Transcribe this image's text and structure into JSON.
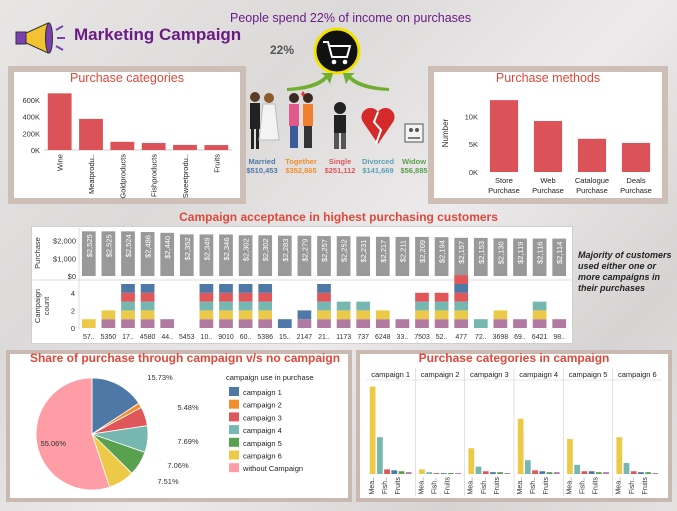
{
  "header": {
    "title": "Marketing Campaign",
    "headline": "People spend 22% of income on purchases",
    "income_share": "22%"
  },
  "colors": {
    "bar_red": "#dc5259",
    "title_purple": "#6a1b86",
    "section_red": "#e0483a",
    "grey_bar": "#999999"
  },
  "icons": {
    "logo": "megaphone-icon",
    "cart": "shopping-cart-icon"
  },
  "marital": [
    {
      "label": "Married",
      "value": "$510,453",
      "color": "#4e79a7",
      "icon": "married-couple-icon"
    },
    {
      "label": "Together",
      "value": "$352,865",
      "color": "#f28e2b",
      "icon": "together-couple-icon"
    },
    {
      "label": "Single",
      "value": "$251,112",
      "color": "#e15759",
      "icon": "single-person-icon"
    },
    {
      "label": "Divorced",
      "value": "$141,669",
      "color": "#59a1b8",
      "icon": "broken-heart-icon"
    },
    {
      "label": "Widow",
      "value": "$56,885",
      "color": "#59a14f",
      "icon": "widow-icon"
    }
  ],
  "chart_data": [
    {
      "id": "purchase_categories",
      "type": "bar",
      "title": "Purchase categories",
      "categories": [
        "Wine",
        "Meatprodu..",
        "Goldproducts",
        "Fishproducts",
        "Sweetprodu..",
        "Fruits"
      ],
      "values": [
        680000,
        373000,
        98000,
        84000,
        61000,
        59000
      ],
      "ylim": [
        0,
        720000
      ],
      "yticks": [
        0,
        200000,
        400000,
        600000
      ],
      "ytick_labels": [
        "0K",
        "200K",
        "400K",
        "600K"
      ],
      "color": "#dc5259"
    },
    {
      "id": "purchase_methods",
      "type": "bar",
      "title": "Purchase methods",
      "ylabel": "Number",
      "categories": [
        "Store Purchase",
        "Web Purchase",
        "Catalogue Purchase",
        "Deals Purchase"
      ],
      "category_lines": [
        [
          "Store",
          "Purchase"
        ],
        [
          "Web",
          "Purchase"
        ],
        [
          "Catalogue",
          "Purchase"
        ],
        [
          "Deals",
          "Purchase"
        ]
      ],
      "values": [
        12900,
        9150,
        5960,
        5210
      ],
      "ylim": [
        0,
        14000
      ],
      "yticks": [
        0,
        5000,
        10000
      ],
      "ytick_labels": [
        "0K",
        "5K",
        "10K"
      ],
      "color": "#dc5259"
    },
    {
      "id": "campaign_acceptance",
      "type": "bar",
      "title": "Campaign acceptance in highest purchasing customers",
      "note": "Majority of customers used either one or more campaigns in their purchases",
      "top_panel": {
        "ylabel": "Purchase",
        "yticks": [
          0,
          1000,
          2000
        ],
        "ytick_labels": [
          "$0",
          "$1,000",
          "$2,000"
        ],
        "ylim": [
          0,
          2600
        ],
        "values": [
          2525,
          2525,
          2524,
          2486,
          2440,
          2352,
          2349,
          2346,
          2302,
          2302,
          2283,
          2279,
          2257,
          2252,
          2231,
          2217,
          2211,
          2209,
          2194,
          2157,
          2153,
          2130,
          2119,
          2116,
          2114
        ],
        "value_labels": [
          "$2,525",
          "$2,525",
          "$2,524",
          "$2,486",
          "$2,440",
          "$2,352",
          "$2,349",
          "$2,346",
          "$2,302",
          "$2,302",
          "$2,283",
          "$2,279",
          "$2,257",
          "$2,252",
          "$2,231",
          "$2,217",
          "$2,211",
          "$2,209",
          "$2,194",
          "$2,157",
          "$2,153",
          "$2,130",
          "$2,119",
          "$2,116",
          "$2,114"
        ],
        "color": "#999999"
      },
      "bottom_panel": {
        "ylabel": "Campaign count",
        "yticks": [
          0,
          2,
          4
        ],
        "ylim": [
          0,
          5
        ],
        "stack_colors": [
          "#b07aa1",
          "#edc948",
          "#76b7b2",
          "#e15759",
          "#4e79a7"
        ],
        "stacks": [
          [
            0,
            1,
            0,
            0,
            0
          ],
          [
            1,
            1,
            0,
            0,
            0
          ],
          [
            1,
            1,
            1,
            1,
            1
          ],
          [
            1,
            1,
            1,
            1,
            1
          ],
          [
            1,
            0,
            0,
            0,
            0
          ],
          [
            0,
            0,
            0,
            0,
            0
          ],
          [
            1,
            1,
            1,
            1,
            1
          ],
          [
            1,
            1,
            1,
            1,
            1
          ],
          [
            1,
            1,
            1,
            1,
            1
          ],
          [
            1,
            1,
            1,
            1,
            1
          ],
          [
            0,
            0,
            0,
            0,
            1
          ],
          [
            1,
            0,
            0,
            0,
            1
          ],
          [
            1,
            1,
            1,
            1,
            1
          ],
          [
            1,
            1,
            1,
            0,
            0
          ],
          [
            1,
            1,
            1,
            0,
            0
          ],
          [
            1,
            1,
            0,
            0,
            0
          ],
          [
            1,
            0,
            0,
            0,
            0
          ],
          [
            1,
            1,
            1,
            1,
            0
          ],
          [
            1,
            1,
            1,
            1,
            0
          ],
          [
            1,
            1,
            1,
            1,
            1
          ],
          [
            0,
            0,
            1,
            0,
            0
          ],
          [
            1,
            1,
            0,
            0,
            0
          ],
          [
            1,
            0,
            0,
            0,
            0
          ],
          [
            1,
            1,
            1,
            0,
            0
          ],
          [
            1,
            0,
            0,
            0,
            0
          ]
        ],
        "extra_top": [
          null,
          null,
          null,
          null,
          null,
          null,
          null,
          null,
          null,
          null,
          null,
          null,
          null,
          null,
          null,
          null,
          null,
          null,
          null,
          "#e15759",
          null,
          null,
          null,
          null,
          null
        ]
      },
      "x_labels": [
        "57..",
        "5350",
        "17..",
        "4580",
        "44..",
        "5453",
        "10..",
        "9010",
        "60..",
        "5386",
        "15..",
        "2147",
        "21..",
        "1173",
        "737",
        "6248",
        "33..",
        "7503",
        "52..",
        "477",
        "72..",
        "3698",
        "69..",
        "6421",
        "98.."
      ]
    },
    {
      "id": "campaign_share",
      "type": "pie",
      "title": "Share of purchase through campaign v/s no campaign",
      "legend_title": "campaign use in purchase",
      "legend_position": "right",
      "slices": [
        {
          "name": "campaign 1",
          "value": 15.73,
          "label": "15.73%",
          "color": "#4e79a7"
        },
        {
          "name": "campaign 2",
          "value": 1.4,
          "label": "",
          "color": "#f28e2b"
        },
        {
          "name": "campaign 3",
          "value": 5.48,
          "label": "5.48%",
          "color": "#e15759"
        },
        {
          "name": "campaign 4",
          "value": 7.69,
          "label": "7.69%",
          "color": "#76b7b2"
        },
        {
          "name": "campaign 5",
          "value": 7.06,
          "label": "7.06%",
          "color": "#59a14f"
        },
        {
          "name": "campaign 6",
          "value": 7.51,
          "label": "7.51%",
          "color": "#edc948"
        },
        {
          "name": "without Campaign",
          "value": 55.06,
          "label": "55.06%",
          "color": "#ff9da7"
        }
      ]
    },
    {
      "id": "campaign_categories",
      "type": "bar",
      "title": "Purchase categories in campaign",
      "panels": [
        "campaign 1",
        "campaign 2",
        "campaign 3",
        "campaign 4",
        "campaign 5",
        "campaign 6"
      ],
      "category_colors": [
        "#edc948",
        "#76b7b2",
        "#e15759",
        "#4e79a7",
        "#59a14f",
        "#b07aa1"
      ],
      "x_labels": [
        "Mea..",
        "Fish..",
        "Fruits"
      ],
      "ylim": [
        0,
        100
      ],
      "values": [
        [
          95,
          40,
          5,
          4,
          3,
          2
        ],
        [
          5,
          2,
          1,
          1,
          1,
          1
        ],
        [
          28,
          8,
          3,
          2,
          2,
          1
        ],
        [
          60,
          15,
          4,
          3,
          2,
          2
        ],
        [
          38,
          10,
          3,
          3,
          2,
          2
        ],
        [
          40,
          12,
          3,
          2,
          2,
          1
        ]
      ]
    }
  ]
}
